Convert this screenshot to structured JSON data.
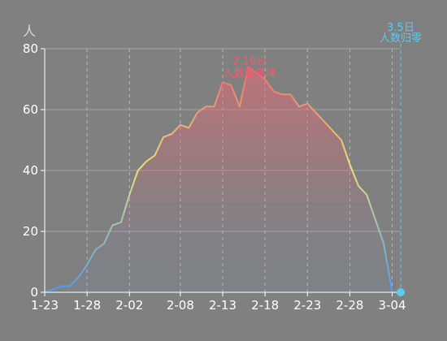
{
  "chart_data": {
    "type": "area",
    "unit_label": "人",
    "ylim": [
      0,
      80
    ],
    "y_ticks": [
      0,
      20,
      40,
      60,
      80
    ],
    "x_start": "1-23",
    "x_end": "3-05",
    "x_ticks": [
      "1-23",
      "1-28",
      "2-02",
      "2-08",
      "2-13",
      "2-18",
      "2-23",
      "2-28",
      "3-04"
    ],
    "grid": "dashed vertical, solid horizontal",
    "colors": {
      "background": "#808080",
      "low": "#4d9df2",
      "mid": "#e8e07a",
      "high": "#ea6a74",
      "peak_annotation": "#f25b6d",
      "zero_annotation": "#5ec8f0"
    },
    "series": [
      {
        "points": [
          [
            "1-23",
            0
          ],
          [
            "1-24",
            1
          ],
          [
            "1-25",
            2
          ],
          [
            "1-26",
            2
          ],
          [
            "1-27",
            5
          ],
          [
            "1-28",
            9
          ],
          [
            "1-29",
            14
          ],
          [
            "1-30",
            16
          ],
          [
            "1-31",
            22
          ],
          [
            "2-01",
            23
          ],
          [
            "2-02",
            32
          ],
          [
            "2-03",
            40
          ],
          [
            "2-04",
            43
          ],
          [
            "2-05",
            45
          ],
          [
            "2-06",
            51
          ],
          [
            "2-07",
            52
          ],
          [
            "2-08",
            55
          ],
          [
            "2-09",
            54
          ],
          [
            "2-10",
            59
          ],
          [
            "2-11",
            61
          ],
          [
            "2-12",
            61
          ],
          [
            "2-13",
            69
          ],
          [
            "2-14",
            68
          ],
          [
            "2-15",
            61
          ],
          [
            "2-16",
            74
          ],
          [
            "2-17",
            72
          ],
          [
            "2-18",
            70
          ],
          [
            "2-19",
            66
          ],
          [
            "2-20",
            65
          ],
          [
            "2-21",
            65
          ],
          [
            "2-22",
            61
          ],
          [
            "2-23",
            62
          ],
          [
            "2-24",
            59
          ],
          [
            "2-25",
            56
          ],
          [
            "2-26",
            53
          ],
          [
            "2-27",
            50
          ],
          [
            "2-28",
            42
          ],
          [
            "2-29",
            35
          ],
          [
            "3-01",
            32
          ],
          [
            "3-02",
            24
          ],
          [
            "3-03",
            16
          ],
          [
            "3-04",
            0
          ],
          [
            "3-05",
            0
          ]
        ]
      }
    ],
    "annotations": {
      "peak": {
        "date": "2-16",
        "value": 74,
        "line1": "2.16日",
        "line2": "人数最高峰"
      },
      "zero": {
        "date": "3-05",
        "value": 0,
        "line1": "3.5日",
        "line2": "人数归零"
      }
    }
  }
}
